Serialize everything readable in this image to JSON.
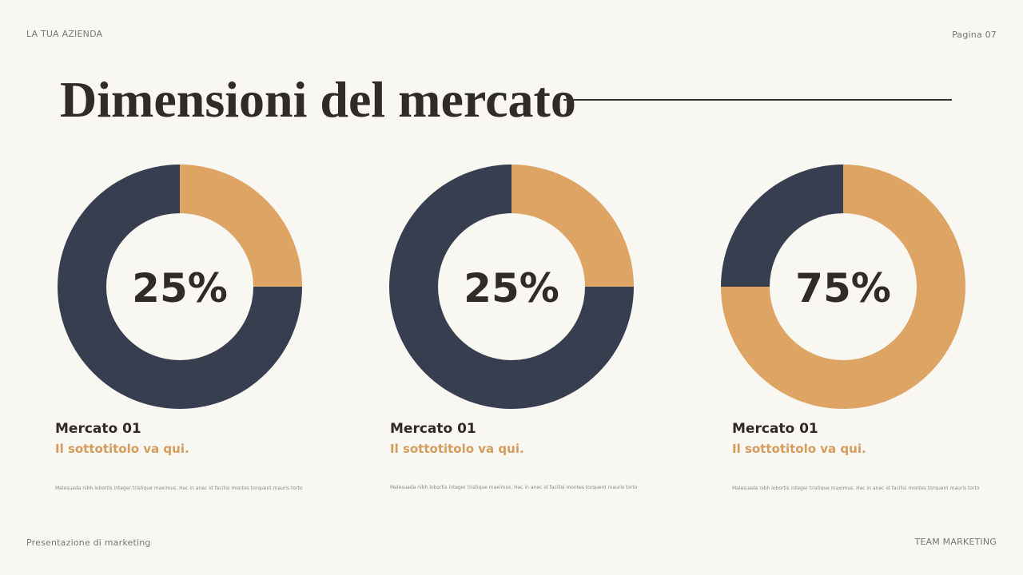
{
  "header": {
    "company": "LA TUA AZIENDA",
    "page": "Pagina 07"
  },
  "title": "Dimensioni del mercato",
  "footer": {
    "left": "Presentazione di marketing",
    "right": "TEAM MARKETING"
  },
  "colors": {
    "primary": "#dda464",
    "secondary": "#363e50",
    "background": "#f9f7f2"
  },
  "chart_data": [
    {
      "type": "pie",
      "variant": "donut",
      "values": [
        25,
        75
      ],
      "label": "25%",
      "highlight_color": "#dda464",
      "rest_color": "#363e50"
    },
    {
      "type": "pie",
      "variant": "donut",
      "values": [
        25,
        75
      ],
      "label": "25%",
      "highlight_color": "#dda464",
      "rest_color": "#363e50"
    },
    {
      "type": "pie",
      "variant": "donut",
      "values": [
        75,
        25
      ],
      "label": "75%",
      "highlight_color": "#dda464",
      "rest_color": "#363e50"
    }
  ],
  "cards": [
    {
      "title": "Mercato 01",
      "subtitle": "Il sottotitolo va qui.",
      "text": "Malesuada nibh lobortis integer tristique maximus. Hac in anec id facilisi montes torquent mauris torto"
    },
    {
      "title": "Mercato 01",
      "subtitle": "Il sottotitolo va qui.",
      "text": "Malesuada nibh lobortis integer tristique maximus. Hac in anec id facilisi montes torquent mauris torto"
    },
    {
      "title": "Mercato 01",
      "subtitle": "Il sottotitolo va qui.",
      "text": "Malesuada nibh lobortis integer tristique maximus. Hac in anec id facilisi montes torquent mauris torto"
    }
  ]
}
